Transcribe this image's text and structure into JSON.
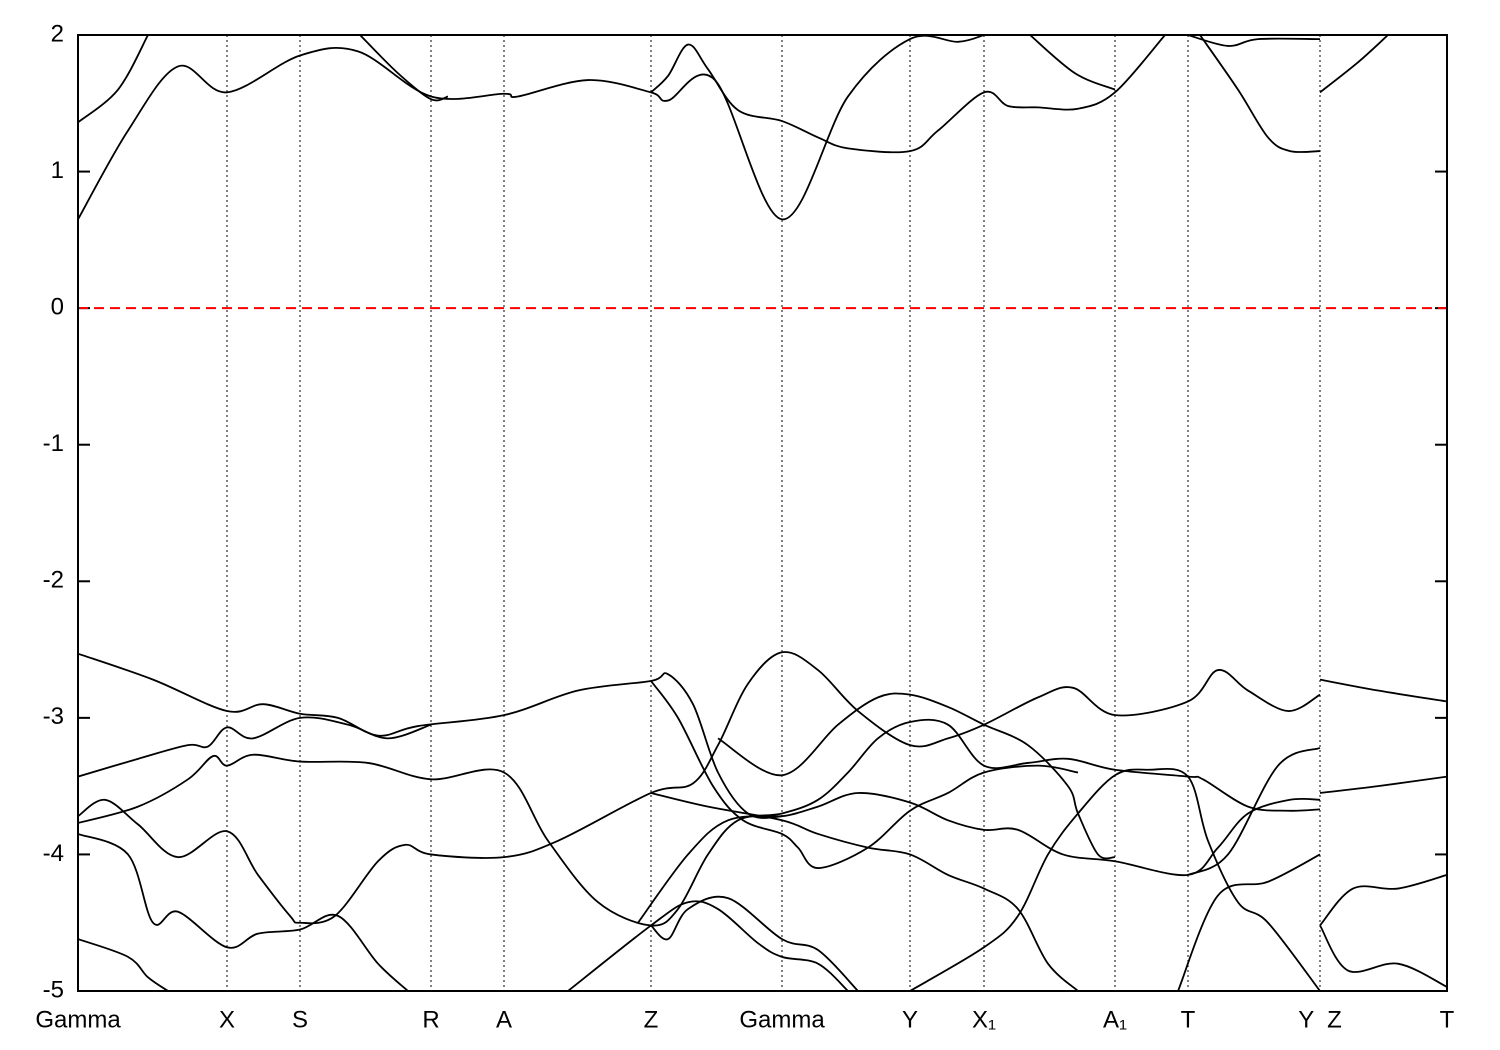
{
  "chart_data": {
    "type": "line",
    "color": "#000000",
    "xlim": [
      0,
      1369
    ],
    "ylim": [
      -5,
      2
    ],
    "yticks": [
      -5,
      -4,
      -3,
      -2,
      -1,
      0,
      1,
      2
    ],
    "xticks": [
      {
        "value": 0,
        "label": "Gamma"
      },
      {
        "value": 149,
        "label": "X"
      },
      {
        "value": 222,
        "label": "S"
      },
      {
        "value": 353,
        "label": "R"
      },
      {
        "value": 426,
        "label": "A"
      },
      {
        "value": 573,
        "label": "Z"
      },
      {
        "value": 704,
        "label": "Gamma"
      },
      {
        "value": 832,
        "label": "Y"
      },
      {
        "value": 906,
        "label": "X₁"
      },
      {
        "value": 1037,
        "label": "A₁"
      },
      {
        "value": 1110,
        "label": "T"
      },
      {
        "value": 1242,
        "label": "Y  Z"
      },
      {
        "value": 1369,
        "label": "T"
      }
    ],
    "xgrid": true,
    "hline": 0,
    "hline_color": "#ff0000",
    "series": [
      {
        "x": [
          0,
          50,
          100,
          149,
          222,
          280,
          353,
          426,
          440,
          510,
          573,
          590,
          637,
          704,
          770,
          832,
          880,
          906
        ],
        "values": [
          0.65,
          1.3,
          1.77,
          1.58,
          1.85,
          1.88,
          1.55,
          1.57,
          1.55,
          1.67,
          1.58,
          1.52,
          1.67,
          0.65,
          1.55,
          1.97,
          1.95,
          2.0
        ]
      },
      {
        "x": [
          0,
          40,
          70
        ],
        "values": [
          1.36,
          1.6,
          2.0
        ]
      },
      {
        "x": [
          282,
          320,
          353,
          370
        ],
        "values": [
          2.0,
          1.72,
          1.53,
          1.55
        ]
      },
      {
        "x": [
          573,
          590,
          610,
          630,
          660,
          704,
          740,
          770,
          832,
          860,
          906,
          930,
          960,
          1000,
          1037,
          1087
        ],
        "values": [
          1.58,
          1.7,
          1.93,
          1.75,
          1.45,
          1.37,
          1.25,
          1.17,
          1.15,
          1.3,
          1.58,
          1.48,
          1.47,
          1.46,
          1.58,
          2.0
        ]
      },
      {
        "x": [
          952,
          997,
          1037
        ],
        "values": [
          2.0,
          1.72,
          1.6
        ]
      },
      {
        "x": [
          1122,
          1160,
          1190,
          1212,
          1242
        ],
        "values": [
          2.0,
          1.6,
          1.25,
          1.15,
          1.15
        ]
      },
      {
        "x": [
          1110,
          1150,
          1180,
          1242
        ],
        "values": [
          2.0,
          1.92,
          1.97,
          1.97
        ]
      },
      {
        "x": [
          1242,
          1280,
          1310
        ],
        "values": [
          1.58,
          1.8,
          2.0
        ]
      },
      {
        "x": [
          0,
          75,
          149,
          185,
          222,
          260,
          300,
          340,
          426,
          500,
          573,
          590,
          615,
          640,
          670,
          704,
          740,
          780,
          832,
          870,
          906,
          940,
          985,
          1037,
          1110,
          1140,
          1170,
          1212,
          1242
        ],
        "values": [
          -2.53,
          -2.72,
          -2.95,
          -2.9,
          -2.97,
          -3.0,
          -3.13,
          -3.06,
          -2.98,
          -2.8,
          -2.73,
          -2.68,
          -2.9,
          -3.4,
          -3.7,
          -3.72,
          -3.65,
          -3.55,
          -3.62,
          -3.75,
          -3.82,
          -3.82,
          -4.0,
          -4.05,
          -4.15,
          -3.95,
          -3.7,
          -3.6,
          -3.6
        ]
      },
      {
        "x": [
          0,
          60,
          110,
          130,
          149,
          175,
          222,
          270,
          310,
          353
        ],
        "values": [
          -3.43,
          -3.3,
          -3.2,
          -3.21,
          -3.07,
          -3.15,
          -3.0,
          -3.05,
          -3.15,
          -3.05
        ]
      },
      {
        "x": [
          0,
          60,
          110,
          135,
          149,
          175,
          222,
          290,
          353,
          426,
          470,
          520,
          573,
          600,
          630,
          660,
          704,
          740,
          770,
          800,
          832,
          870,
          906,
          950,
          990,
          1037,
          1110,
          1125,
          1170,
          1210,
          1242
        ],
        "values": [
          -3.77,
          -3.65,
          -3.45,
          -3.28,
          -3.35,
          -3.27,
          -3.32,
          -3.33,
          -3.45,
          -3.4,
          -3.9,
          -4.35,
          -4.52,
          -4.4,
          -4.0,
          -3.75,
          -3.7,
          -3.6,
          -3.4,
          -3.15,
          -3.03,
          -3.05,
          -3.35,
          -3.33,
          -3.3,
          -3.38,
          -3.43,
          -3.45,
          -3.65,
          -3.68,
          -3.67
        ]
      },
      {
        "x": [
          0,
          27,
          60,
          100,
          149,
          180,
          212,
          222,
          257,
          300,
          327,
          353,
          426,
          480,
          573,
          615,
          640,
          670,
          704,
          740,
          780,
          832,
          870,
          906,
          960,
          995,
          1037,
          1110,
          1140,
          1170,
          1210,
          1242
        ],
        "values": [
          -3.72,
          -3.6,
          -3.78,
          -4.02,
          -3.83,
          -4.15,
          -4.45,
          -4.5,
          -4.45,
          -4.05,
          -3.93,
          -4.0,
          -4.02,
          -3.9,
          -3.55,
          -3.48,
          -3.2,
          -2.75,
          -2.52,
          -2.65,
          -2.95,
          -3.2,
          -3.15,
          -3.05,
          -2.85,
          -2.78,
          -2.98,
          -2.88,
          -2.65,
          -2.8,
          -2.95,
          -2.83
        ]
      },
      {
        "x": [
          573,
          630,
          704,
          740,
          790,
          832,
          870,
          906,
          940,
          970,
          1000
        ],
        "values": [
          -3.55,
          -3.65,
          -3.75,
          -3.85,
          -3.95,
          -4.0,
          -4.15,
          -4.25,
          -4.4,
          -4.8,
          -5.0
        ]
      },
      {
        "x": [
          573,
          600,
          635,
          665,
          704,
          720,
          740,
          790,
          832,
          870,
          906,
          960,
          1000
        ],
        "values": [
          -2.73,
          -3.0,
          -3.5,
          -3.75,
          -3.85,
          -3.95,
          -4.1,
          -3.95,
          -3.68,
          -3.55,
          -3.4,
          -3.35,
          -3.4
        ]
      },
      {
        "x": [
          640,
          704,
          760,
          800,
          832,
          870,
          906,
          950,
          990,
          1000,
          1020,
          1037
        ],
        "values": [
          -3.15,
          -3.42,
          -3.05,
          -2.85,
          -2.83,
          -2.92,
          -3.05,
          -3.2,
          -3.5,
          -3.7,
          -4.0,
          -4.02
        ]
      },
      {
        "x": [
          0,
          50,
          75,
          100,
          149,
          180,
          222,
          260,
          300,
          330
        ],
        "values": [
          -3.85,
          -4.0,
          -4.5,
          -4.42,
          -4.68,
          -4.58,
          -4.55,
          -4.45,
          -4.8,
          -5.0
        ]
      },
      {
        "x": [
          0,
          50,
          70,
          90
        ],
        "values": [
          -4.62,
          -4.75,
          -4.9,
          -5.0
        ]
      },
      {
        "x": [
          490,
          573,
          610,
          640,
          680,
          704,
          740,
          770
        ],
        "values": [
          -5.0,
          -4.52,
          -4.35,
          -4.4,
          -4.65,
          -4.75,
          -4.8,
          -5.0
        ]
      },
      {
        "x": [
          573,
          590,
          610,
          650,
          704,
          740,
          780
        ],
        "values": [
          -4.52,
          -4.62,
          -4.4,
          -4.32,
          -4.62,
          -4.7,
          -5.0
        ]
      },
      {
        "x": [
          560,
          610,
          650,
          704
        ],
        "values": [
          -4.5,
          -4.0,
          -3.75,
          -3.72
        ]
      },
      {
        "x": [
          832,
          906,
          940,
          970,
          1000,
          1037,
          1070,
          1110,
          1130,
          1160,
          1190,
          1242
        ],
        "values": [
          -5.0,
          -4.68,
          -4.45,
          -4.0,
          -3.7,
          -3.42,
          -3.38,
          -3.43,
          -3.9,
          -4.35,
          -4.5,
          -5.0
        ]
      },
      {
        "x": [
          1110,
          1150,
          1200,
          1242
        ],
        "values": [
          -4.15,
          -4.0,
          -3.35,
          -3.22
        ]
      },
      {
        "x": [
          1100,
          1140,
          1190,
          1242
        ],
        "values": [
          -5.0,
          -4.3,
          -4.2,
          -4.0
        ]
      },
      {
        "x": [
          1242,
          1300,
          1369
        ],
        "values": [
          -2.72,
          -2.8,
          -2.88
        ]
      },
      {
        "x": [
          1242,
          1300,
          1369
        ],
        "values": [
          -3.55,
          -3.5,
          -3.43
        ]
      },
      {
        "x": [
          1242,
          1275,
          1320,
          1369
        ],
        "values": [
          -4.52,
          -4.25,
          -4.25,
          -4.15
        ]
      },
      {
        "x": [
          1242,
          1270,
          1320,
          1369
        ],
        "values": [
          -4.52,
          -4.85,
          -4.8,
          -4.97
        ]
      }
    ]
  }
}
